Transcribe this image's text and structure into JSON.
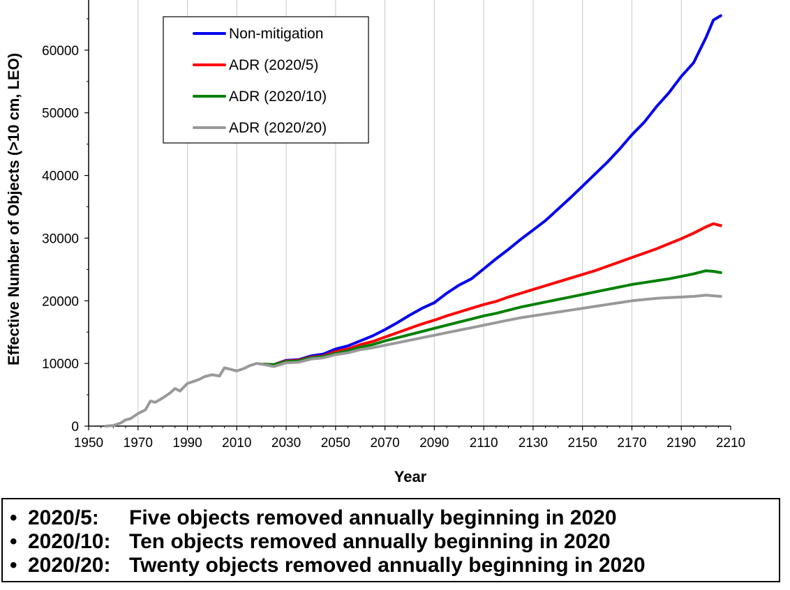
{
  "chart_data": {
    "type": "line",
    "xlabel": "Year",
    "ylabel": "Effective Number of Objects (>10 cm, LEO)",
    "xlim": [
      1950,
      2210
    ],
    "ylim": [
      0,
      68000
    ],
    "x_ticks": [
      "1950",
      "1970",
      "1990",
      "2010",
      "2030",
      "2050",
      "2070",
      "2090",
      "2110",
      "2130",
      "2150",
      "2170",
      "2190",
      "2210"
    ],
    "y_ticks": [
      "0",
      "10000",
      "20000",
      "30000",
      "40000",
      "50000",
      "60000"
    ],
    "grid": "vertical",
    "legend_position": "top-left",
    "historical": {
      "x": [
        1957,
        1960,
        1963,
        1965,
        1967,
        1970,
        1973,
        1975,
        1977,
        1980,
        1983,
        1985,
        1987,
        1990,
        1993,
        1995,
        1997,
        2000,
        2003,
        2005,
        2006,
        2008,
        2010,
        2013,
        2015,
        2018,
        2020
      ],
      "y": [
        0,
        100,
        500,
        1000,
        1200,
        2000,
        2600,
        4000,
        3800,
        4500,
        5300,
        6000,
        5600,
        6800,
        7200,
        7500,
        7900,
        8200,
        8000,
        9300,
        9200,
        9000,
        8800,
        9200,
        9600,
        10000,
        9900
      ]
    },
    "series": [
      {
        "name": "Non-mitigation",
        "color": "#0000ee",
        "x": [
          2020,
          2025,
          2030,
          2035,
          2040,
          2045,
          2050,
          2055,
          2060,
          2065,
          2070,
          2075,
          2080,
          2085,
          2090,
          2095,
          2100,
          2105,
          2110,
          2115,
          2120,
          2125,
          2130,
          2135,
          2140,
          2145,
          2150,
          2155,
          2160,
          2165,
          2170,
          2175,
          2180,
          2185,
          2190,
          2195,
          2200,
          2203,
          2206
        ],
        "y": [
          9900,
          9800,
          10500,
          10600,
          11200,
          11500,
          12300,
          12800,
          13600,
          14400,
          15400,
          16500,
          17700,
          18800,
          19700,
          21200,
          22500,
          23500,
          25100,
          26700,
          28200,
          29800,
          31300,
          32800,
          34600,
          36400,
          38300,
          40200,
          42100,
          44200,
          46500,
          48500,
          51000,
          53200,
          55800,
          58000,
          62000,
          64800,
          65500
        ]
      },
      {
        "name": "ADR (2020/5)",
        "color": "#ff0000",
        "x": [
          2020,
          2025,
          2030,
          2035,
          2040,
          2045,
          2050,
          2055,
          2060,
          2065,
          2070,
          2075,
          2080,
          2085,
          2090,
          2095,
          2100,
          2105,
          2110,
          2115,
          2120,
          2125,
          2130,
          2135,
          2140,
          2145,
          2150,
          2155,
          2160,
          2165,
          2170,
          2175,
          2180,
          2185,
          2190,
          2195,
          2200,
          2203,
          2206
        ],
        "y": [
          9900,
          9800,
          10400,
          10500,
          11000,
          11200,
          11900,
          12300,
          13000,
          13500,
          14200,
          14900,
          15600,
          16300,
          16900,
          17600,
          18200,
          18800,
          19400,
          19900,
          20600,
          21200,
          21800,
          22400,
          23000,
          23600,
          24200,
          24800,
          25500,
          26200,
          26900,
          27600,
          28300,
          29100,
          29900,
          30800,
          31800,
          32300,
          32000
        ]
      },
      {
        "name": "ADR (2020/10)",
        "color": "#008000",
        "x": [
          2020,
          2025,
          2030,
          2035,
          2040,
          2045,
          2050,
          2055,
          2060,
          2065,
          2070,
          2075,
          2080,
          2085,
          2090,
          2095,
          2100,
          2105,
          2110,
          2115,
          2120,
          2125,
          2130,
          2135,
          2140,
          2145,
          2150,
          2155,
          2160,
          2165,
          2170,
          2175,
          2180,
          2185,
          2190,
          2195,
          2200,
          2203,
          2206
        ],
        "y": [
          9900,
          9800,
          10300,
          10400,
          10900,
          11100,
          11600,
          12000,
          12600,
          13000,
          13600,
          14100,
          14600,
          15100,
          15600,
          16100,
          16600,
          17100,
          17600,
          18000,
          18500,
          19000,
          19400,
          19800,
          20200,
          20600,
          21000,
          21400,
          21800,
          22200,
          22600,
          22900,
          23200,
          23500,
          23900,
          24300,
          24800,
          24700,
          24500
        ]
      },
      {
        "name": "ADR (2020/20)",
        "color": "#999999",
        "x": [
          2020,
          2025,
          2030,
          2035,
          2040,
          2045,
          2050,
          2055,
          2060,
          2065,
          2070,
          2075,
          2080,
          2085,
          2090,
          2095,
          2100,
          2105,
          2110,
          2115,
          2120,
          2125,
          2130,
          2135,
          2140,
          2145,
          2150,
          2155,
          2160,
          2165,
          2170,
          2175,
          2180,
          2185,
          2190,
          2195,
          2200,
          2203,
          2206
        ],
        "y": [
          9900,
          9500,
          10100,
          10200,
          10700,
          10900,
          11400,
          11700,
          12200,
          12500,
          12900,
          13300,
          13700,
          14100,
          14500,
          14900,
          15300,
          15700,
          16100,
          16500,
          16900,
          17300,
          17600,
          17900,
          18200,
          18500,
          18800,
          19100,
          19400,
          19700,
          20000,
          20200,
          20400,
          20500,
          20600,
          20700,
          20900,
          20800,
          20700
        ]
      }
    ]
  },
  "notes": [
    {
      "bullet": "•",
      "code": "2020/5:",
      "text": "Five objects removed annually beginning in 2020"
    },
    {
      "bullet": "•",
      "code": "2020/10:",
      "text": "Ten objects removed annually beginning in 2020"
    },
    {
      "bullet": "•",
      "code": "2020/20:",
      "text": "Twenty objects removed annually beginning in 2020"
    }
  ]
}
